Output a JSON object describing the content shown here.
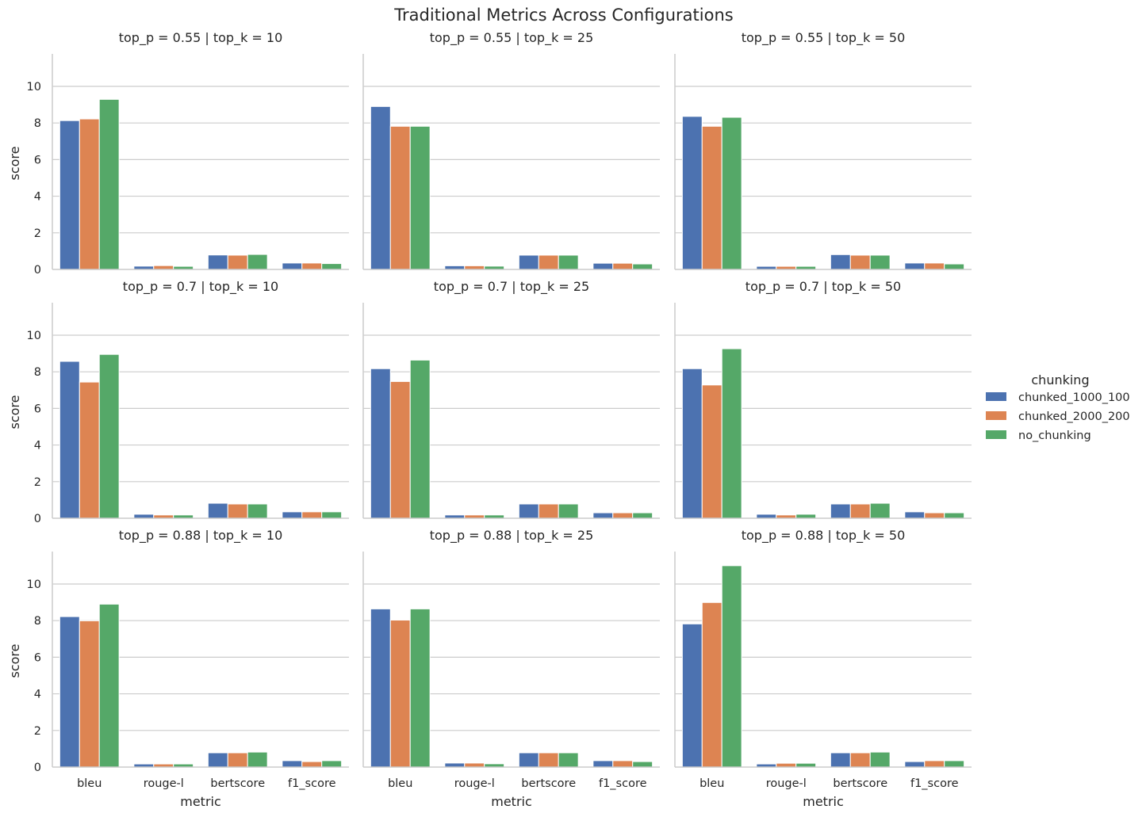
{
  "chart_data": {
    "type": "bar",
    "title": "Traditional Metrics Across Configurations",
    "categories": [
      "bleu",
      "rouge-l",
      "bertscore",
      "f1_score"
    ],
    "xlabel": "metric",
    "ylabel": "score",
    "ylim": [
      0,
      11.6
    ],
    "yticks": [
      0,
      2,
      4,
      6,
      8,
      10
    ],
    "grid": true,
    "legend": {
      "title": "chunking",
      "position": "right",
      "entries": [
        "chunked_1000_100",
        "chunked_2000_200",
        "no_chunking"
      ]
    },
    "colors": [
      "#4c72b0",
      "#dd8452",
      "#55a868"
    ],
    "panels": [
      {
        "title": "top_p = 0.55 | top_k = 10",
        "series": [
          {
            "name": "chunked_1000_100",
            "values": [
              8.13,
              0.18,
              0.79,
              0.35
            ]
          },
          {
            "name": "chunked_2000_200",
            "values": [
              8.22,
              0.21,
              0.78,
              0.35
            ]
          },
          {
            "name": "no_chunking",
            "values": [
              9.29,
              0.17,
              0.82,
              0.32
            ]
          }
        ]
      },
      {
        "title": "top_p = 0.55 | top_k = 25",
        "series": [
          {
            "name": "chunked_1000_100",
            "values": [
              8.9,
              0.2,
              0.78,
              0.34
            ]
          },
          {
            "name": "chunked_2000_200",
            "values": [
              7.82,
              0.2,
              0.78,
              0.34
            ]
          },
          {
            "name": "no_chunking",
            "values": [
              7.82,
              0.18,
              0.78,
              0.3
            ]
          }
        ]
      },
      {
        "title": "top_p = 0.55 | top_k = 50",
        "series": [
          {
            "name": "chunked_1000_100",
            "values": [
              8.36,
              0.17,
              0.81,
              0.35
            ]
          },
          {
            "name": "chunked_2000_200",
            "values": [
              7.82,
              0.17,
              0.78,
              0.35
            ]
          },
          {
            "name": "no_chunking",
            "values": [
              8.31,
              0.17,
              0.78,
              0.3
            ]
          }
        ]
      },
      {
        "title": "top_p = 0.7 | top_k = 10",
        "series": [
          {
            "name": "chunked_1000_100",
            "values": [
              8.57,
              0.22,
              0.82,
              0.35
            ]
          },
          {
            "name": "chunked_2000_200",
            "values": [
              7.44,
              0.18,
              0.78,
              0.35
            ]
          },
          {
            "name": "no_chunking",
            "values": [
              8.95,
              0.18,
              0.78,
              0.35
            ]
          }
        ]
      },
      {
        "title": "top_p = 0.7 | top_k = 25",
        "series": [
          {
            "name": "chunked_1000_100",
            "values": [
              8.17,
              0.18,
              0.78,
              0.3
            ]
          },
          {
            "name": "chunked_2000_200",
            "values": [
              7.47,
              0.18,
              0.78,
              0.3
            ]
          },
          {
            "name": "no_chunking",
            "values": [
              8.64,
              0.18,
              0.78,
              0.3
            ]
          }
        ]
      },
      {
        "title": "top_p = 0.7 | top_k = 50",
        "series": [
          {
            "name": "chunked_1000_100",
            "values": [
              8.17,
              0.22,
              0.78,
              0.35
            ]
          },
          {
            "name": "chunked_2000_200",
            "values": [
              7.28,
              0.18,
              0.78,
              0.3
            ]
          },
          {
            "name": "no_chunking",
            "values": [
              9.26,
              0.22,
              0.82,
              0.3
            ]
          }
        ]
      },
      {
        "title": "top_p = 0.88 | top_k = 10",
        "series": [
          {
            "name": "chunked_1000_100",
            "values": [
              8.22,
              0.17,
              0.78,
              0.35
            ]
          },
          {
            "name": "chunked_2000_200",
            "values": [
              7.99,
              0.17,
              0.78,
              0.3
            ]
          },
          {
            "name": "no_chunking",
            "values": [
              8.9,
              0.17,
              0.82,
              0.35
            ]
          }
        ]
      },
      {
        "title": "top_p = 0.88 | top_k = 25",
        "series": [
          {
            "name": "chunked_1000_100",
            "values": [
              8.64,
              0.22,
              0.78,
              0.35
            ]
          },
          {
            "name": "chunked_2000_200",
            "values": [
              8.03,
              0.22,
              0.78,
              0.35
            ]
          },
          {
            "name": "no_chunking",
            "values": [
              8.64,
              0.18,
              0.78,
              0.3
            ]
          }
        ]
      },
      {
        "title": "top_p = 0.88 | top_k = 50",
        "series": [
          {
            "name": "chunked_1000_100",
            "values": [
              7.82,
              0.17,
              0.78,
              0.3
            ]
          },
          {
            "name": "chunked_2000_200",
            "values": [
              8.99,
              0.21,
              0.78,
              0.35
            ]
          },
          {
            "name": "no_chunking",
            "values": [
              11.0,
              0.21,
              0.82,
              0.35
            ]
          }
        ]
      }
    ]
  }
}
